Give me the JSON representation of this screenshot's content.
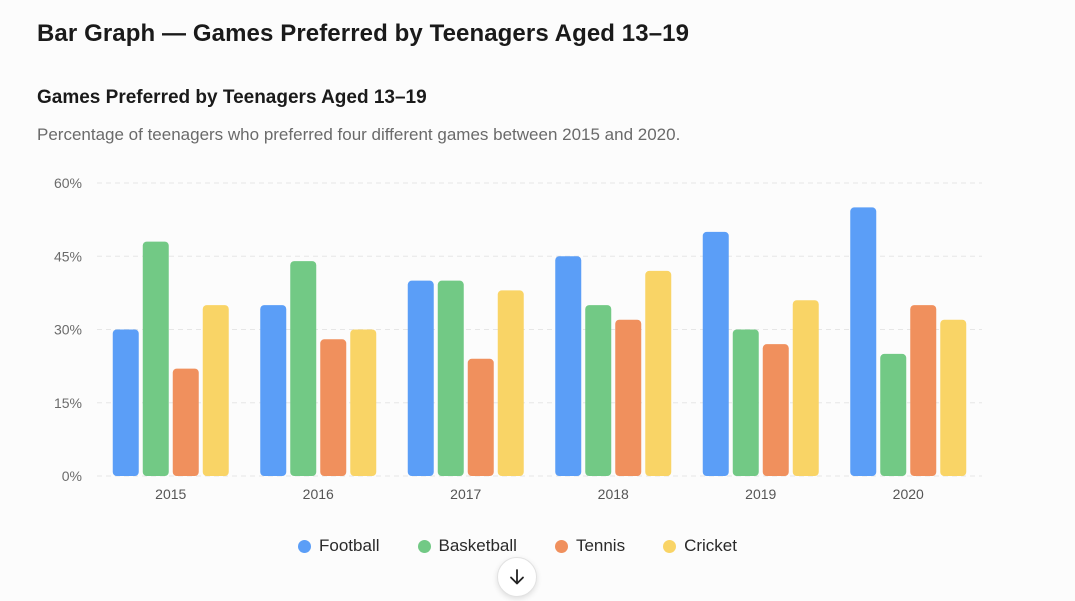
{
  "page": {
    "title": "Bar Graph — Games Preferred by Teenagers Aged 13–19"
  },
  "chart_data": {
    "type": "bar",
    "title": "Games Preferred by Teenagers Aged 13–19",
    "subtitle": "Percentage of teenagers who preferred four different games between 2015 and 2020.",
    "categories": [
      "2015",
      "2016",
      "2017",
      "2018",
      "2019",
      "2020"
    ],
    "series": [
      {
        "name": "Football",
        "color": "#5b9ef7",
        "values": [
          30,
          35,
          40,
          45,
          50,
          55
        ]
      },
      {
        "name": "Basketball",
        "color": "#72c985",
        "values": [
          48,
          44,
          40,
          35,
          30,
          25
        ]
      },
      {
        "name": "Tennis",
        "color": "#f0905d",
        "values": [
          22,
          28,
          24,
          32,
          27,
          35
        ]
      },
      {
        "name": "Cricket",
        "color": "#f9d466",
        "values": [
          35,
          30,
          38,
          42,
          36,
          32
        ]
      }
    ],
    "ylim": [
      0,
      60
    ],
    "yticks": [
      0,
      15,
      30,
      45,
      60
    ],
    "ytick_labels": [
      "0%",
      "15%",
      "30%",
      "45%",
      "60%"
    ],
    "grid": true,
    "legend_position": "bottom-center"
  },
  "controls": {
    "scroll_button_icon": "arrow-down-icon"
  }
}
